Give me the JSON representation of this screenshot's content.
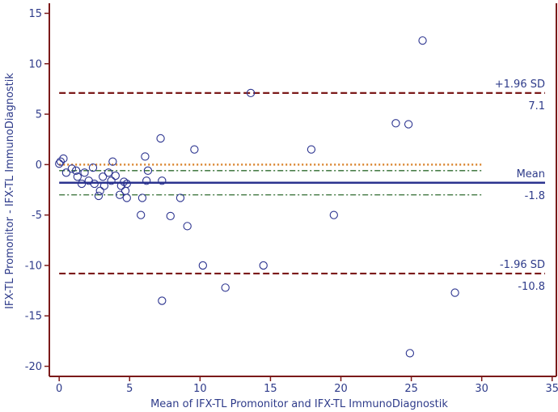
{
  "chart_data": {
    "type": "scatter",
    "title": "",
    "xlabel": "Mean of IFX-TL Promonitor and IFX-TL ImmunoDiagnostik",
    "ylabel": "IFX-TL Promonitor - IFX-TL ImmunoDiagnostik",
    "xlim": [
      -0.7,
      35.3
    ],
    "ylim": [
      -21,
      16
    ],
    "x_ticks": [
      0,
      5,
      10,
      15,
      20,
      25,
      30,
      35
    ],
    "y_ticks": [
      -20,
      -15,
      -10,
      -5,
      0,
      5,
      10,
      15
    ],
    "x_tick_labels": [
      "0",
      "5",
      "10",
      "15",
      "20",
      "25",
      "30",
      "35"
    ],
    "y_tick_labels": [
      "-20",
      "-15",
      "-10",
      "-5",
      "0",
      "5",
      "10",
      "15"
    ],
    "grid": false,
    "points": [
      {
        "x": 0.0,
        "y": 0.1
      },
      {
        "x": 0.1,
        "y": 0.3
      },
      {
        "x": 0.3,
        "y": 0.6
      },
      {
        "x": 0.5,
        "y": -0.8
      },
      {
        "x": 0.9,
        "y": -0.4
      },
      {
        "x": 1.2,
        "y": -0.6
      },
      {
        "x": 1.3,
        "y": -1.2
      },
      {
        "x": 1.6,
        "y": -1.9
      },
      {
        "x": 1.8,
        "y": -0.8
      },
      {
        "x": 2.1,
        "y": -1.6
      },
      {
        "x": 2.4,
        "y": -0.3
      },
      {
        "x": 2.5,
        "y": -1.9
      },
      {
        "x": 2.8,
        "y": -3.1
      },
      {
        "x": 2.9,
        "y": -2.6
      },
      {
        "x": 3.1,
        "y": -1.2
      },
      {
        "x": 3.2,
        "y": -2.1
      },
      {
        "x": 3.5,
        "y": -0.8
      },
      {
        "x": 3.7,
        "y": -1.6
      },
      {
        "x": 3.8,
        "y": 0.3
      },
      {
        "x": 4.0,
        "y": -1.1
      },
      {
        "x": 4.3,
        "y": -3.0
      },
      {
        "x": 4.4,
        "y": -2.1
      },
      {
        "x": 4.6,
        "y": -1.7
      },
      {
        "x": 4.7,
        "y": -2.6
      },
      {
        "x": 4.8,
        "y": -3.3
      },
      {
        "x": 4.8,
        "y": -1.9
      },
      {
        "x": 5.8,
        "y": -5.0
      },
      {
        "x": 5.9,
        "y": -3.3
      },
      {
        "x": 6.1,
        "y": 0.8
      },
      {
        "x": 6.2,
        "y": -1.6
      },
      {
        "x": 6.3,
        "y": -0.6
      },
      {
        "x": 7.2,
        "y": 2.6
      },
      {
        "x": 7.3,
        "y": -1.6
      },
      {
        "x": 7.3,
        "y": -13.5
      },
      {
        "x": 7.9,
        "y": -5.1
      },
      {
        "x": 8.6,
        "y": -3.3
      },
      {
        "x": 9.1,
        "y": -6.1
      },
      {
        "x": 9.6,
        "y": 1.5
      },
      {
        "x": 10.2,
        "y": -10.0
      },
      {
        "x": 11.8,
        "y": -12.2
      },
      {
        "x": 13.6,
        "y": 7.1
      },
      {
        "x": 14.5,
        "y": -10.0
      },
      {
        "x": 17.9,
        "y": 1.5
      },
      {
        "x": 19.5,
        "y": -5.0
      },
      {
        "x": 23.9,
        "y": 4.1
      },
      {
        "x": 24.8,
        "y": 4.0
      },
      {
        "x": 24.9,
        "y": -18.7
      },
      {
        "x": 25.8,
        "y": 12.3
      },
      {
        "x": 28.1,
        "y": -12.7
      }
    ],
    "reference_lines": [
      {
        "name": "upper",
        "y": 7.1,
        "label_top": "+1.96 SD",
        "label_bottom": "7.1",
        "style": "dashed",
        "color": "#7b1a1a"
      },
      {
        "name": "mean",
        "y": -1.8,
        "label_top": "Mean",
        "label_bottom": "-1.8",
        "style": "solid",
        "color": "#2b338f"
      },
      {
        "name": "lower",
        "y": -10.8,
        "label_top": "-1.96 SD",
        "label_bottom": "-10.8",
        "style": "dashed",
        "color": "#7b1a1a"
      }
    ],
    "zero_line": {
      "y": 0,
      "x_end": 30,
      "style": "dotted",
      "color": "#d9822b"
    },
    "mean_ci_lines": {
      "y": [
        -0.6,
        -3.0
      ],
      "x_end": 30,
      "style": "dash-dot",
      "color": "#2e6b2e"
    },
    "colors": {
      "axis": "#7b1a1a",
      "text": "#2e3b8a",
      "marker": "#2b338f"
    }
  }
}
